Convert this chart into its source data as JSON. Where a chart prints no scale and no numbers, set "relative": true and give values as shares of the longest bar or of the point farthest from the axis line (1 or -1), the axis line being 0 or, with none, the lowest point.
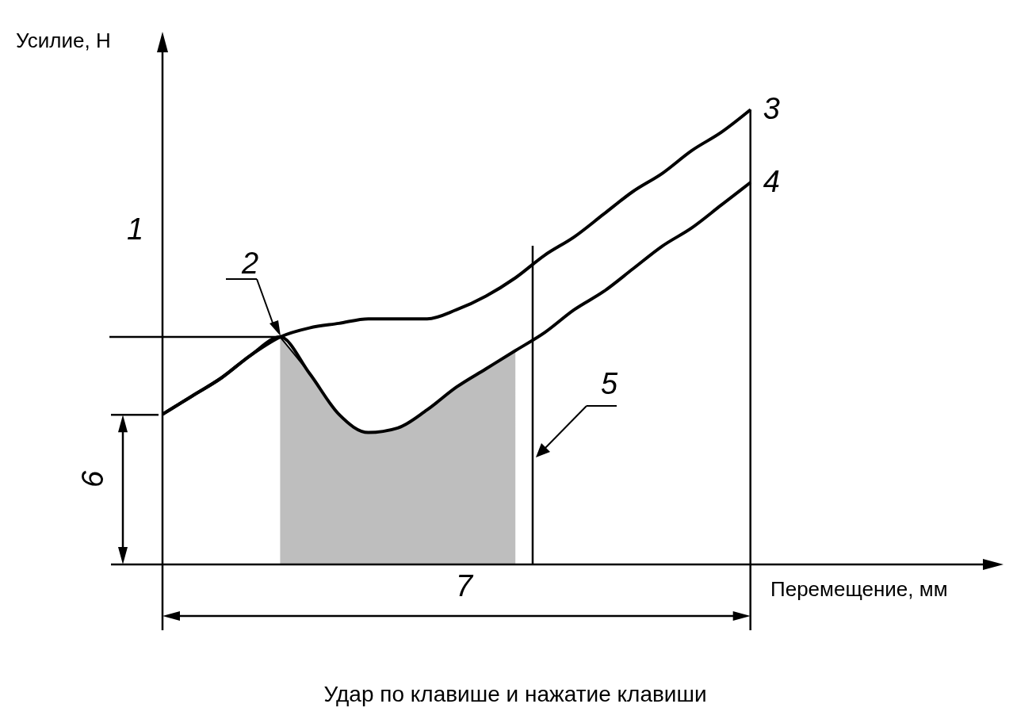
{
  "chart_data": {
    "type": "line",
    "relative": true,
    "title": "Удар по клавише и нажатие клавиши",
    "xlabel": "Перемещение, мм",
    "ylabel": "Усилие, Н",
    "categories": [
      null,
      null,
      null,
      null,
      null,
      null,
      null,
      null,
      null,
      null,
      null,
      null,
      null,
      null,
      null,
      null,
      null,
      null,
      null,
      null,
      null
    ],
    "series": [
      {
        "name": "3",
        "color": "#000000",
        "values": [
          0.33,
          0.37,
          0.41,
          0.46,
          0.5,
          0.52,
          0.53,
          0.54,
          0.54,
          0.54,
          0.56,
          0.59,
          0.63,
          0.68,
          0.72,
          0.77,
          0.82,
          0.86,
          0.91,
          0.95,
          1
        ]
      },
      {
        "name": "4",
        "color": "#000000",
        "values": [
          0.33,
          0.37,
          0.41,
          0.46,
          0.5,
          0.42,
          0.33,
          0.29,
          0.3,
          0.34,
          0.39,
          0.43,
          0.47,
          0.51,
          0.56,
          0.6,
          0.65,
          0.7,
          0.74,
          0.79,
          0.84
        ]
      },
      {
        "type": "area",
        "color": "#bebebe",
        "values": [
          null,
          null,
          null,
          null,
          0.5,
          0.42,
          0.33,
          0.29,
          0.3,
          0.34,
          0.39,
          0.43,
          0.47,
          null,
          null,
          null,
          null,
          null,
          null,
          null,
          null
        ]
      }
    ],
    "ref_lines": [
      {
        "axis": "y",
        "value": 0.5
      }
    ],
    "annotations": [
      "1",
      "2",
      "5",
      "6",
      "7"
    ],
    "legend": false,
    "grid": false
  }
}
